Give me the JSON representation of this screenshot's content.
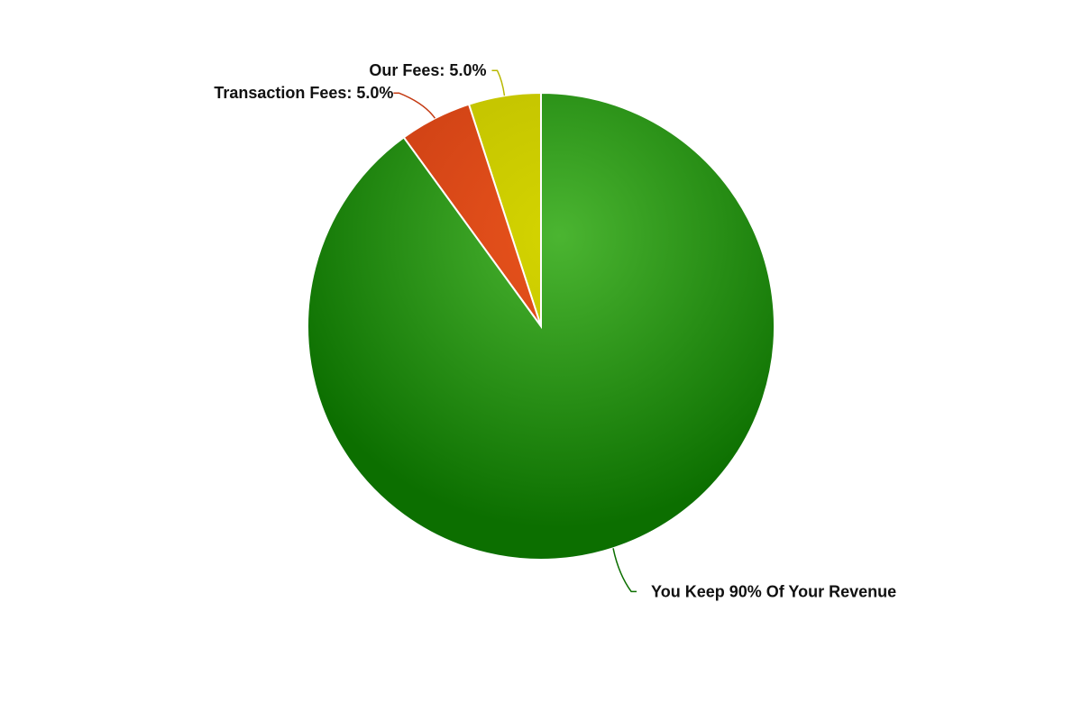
{
  "chart_data": {
    "type": "pie",
    "title": "",
    "slices": [
      {
        "label": "Our Fees: 5.0%",
        "value": 5.0,
        "color": "#d4d400",
        "shade": "#b8b800"
      },
      {
        "label": "Transaction Fees: 5.0%",
        "value": 5.0,
        "color": "#e8531c",
        "shade": "#c43a12"
      },
      {
        "label": "You Keep 90% Of Your Revenue",
        "value": 90.0,
        "color": "#4bb531",
        "shade": "#0c6f00"
      }
    ],
    "legend": "none",
    "label_placement": "outside with leader lines"
  }
}
